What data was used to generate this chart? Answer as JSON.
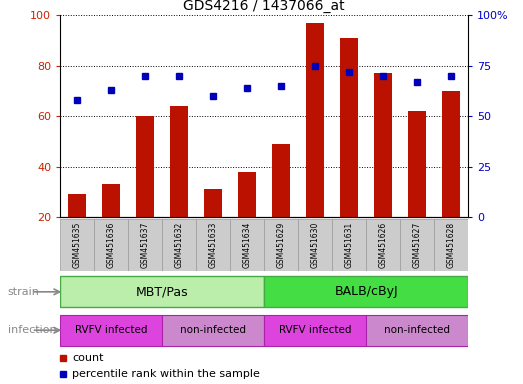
{
  "title": "GDS4216 / 1437066_at",
  "samples": [
    "GSM451635",
    "GSM451636",
    "GSM451637",
    "GSM451632",
    "GSM451633",
    "GSM451634",
    "GSM451629",
    "GSM451630",
    "GSM451631",
    "GSM451626",
    "GSM451627",
    "GSM451628"
  ],
  "counts": [
    29,
    33,
    60,
    64,
    31,
    38,
    49,
    97,
    91,
    77,
    62,
    70
  ],
  "percentiles": [
    58,
    63,
    70,
    70,
    60,
    64,
    65,
    75,
    72,
    70,
    67,
    70
  ],
  "ylim_left": [
    20,
    100
  ],
  "ylim_right": [
    0,
    100
  ],
  "yticks_left": [
    20,
    40,
    60,
    80,
    100
  ],
  "yticks_right": [
    0,
    25,
    50,
    75,
    100
  ],
  "yticklabels_right": [
    "0",
    "25",
    "50",
    "75",
    "100%"
  ],
  "bar_color": "#bb1100",
  "dot_color": "#0000bb",
  "bar_width": 0.55,
  "strain_labels": [
    "MBT/Pas",
    "BALB/cByJ"
  ],
  "strain_color_left": "#bbeeaa",
  "strain_color_right": "#44dd44",
  "strain_edge_color": "#44aa44",
  "infection_colors": [
    "#dd44dd",
    "#cc88cc",
    "#dd44dd",
    "#cc88cc"
  ],
  "infection_edge_color": "#aa22aa",
  "infection_labels": [
    "RVFV infected",
    "non-infected",
    "RVFV infected",
    "non-infected"
  ],
  "legend_count_label": "count",
  "legend_pct_label": "percentile rank within the sample",
  "tick_label_color": "#cc2200",
  "right_tick_color": "#0000cc",
  "grid_color": "#000000",
  "background_color": "#ffffff",
  "plot_bg": "#ffffff",
  "sample_bg": "#cccccc",
  "sample_edge": "#999999",
  "left_label_color": "#888888",
  "arrow_color": "#888888"
}
